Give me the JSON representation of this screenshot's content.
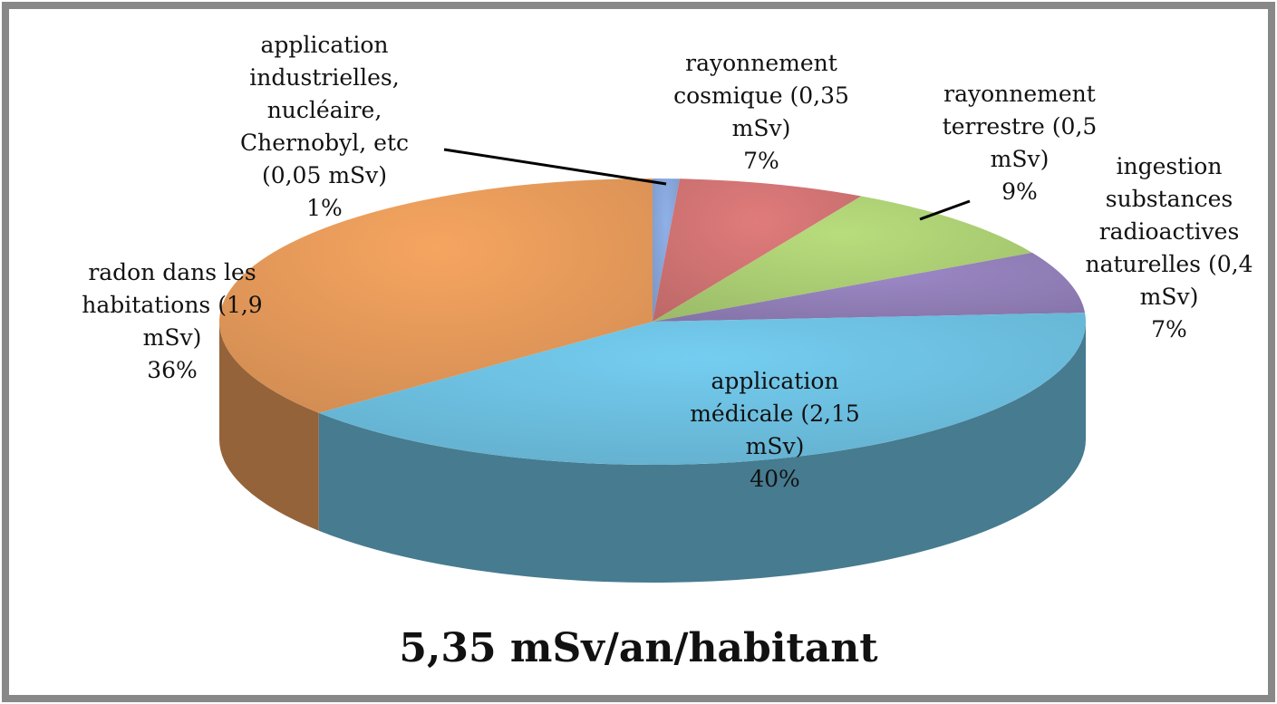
{
  "chart_data": {
    "type": "pie3d",
    "title": "5,35 mSv/an/habitant",
    "categories": [
      "application industrielles, nucléaire, Chernobyl, etc (0,05 mSv)",
      "rayonnement cosmique (0,35 mSv)",
      "rayonnement terrestre (0,5 mSv)",
      "ingestion substances radioactives naturelles (0,4 mSv)",
      "application médicale (2,15 mSv)",
      "radon dans les habitations (1,9 mSv)"
    ],
    "values": [
      1,
      7,
      9,
      7,
      40,
      36
    ],
    "value_labels": [
      "1%",
      "7%",
      "9%",
      "7%",
      "40%",
      "36%"
    ],
    "colors": [
      "#8fb0e8",
      "#e07b7b",
      "#b8dd7c",
      "#9c88c6",
      "#74cdf0",
      "#f6a560"
    ]
  }
}
